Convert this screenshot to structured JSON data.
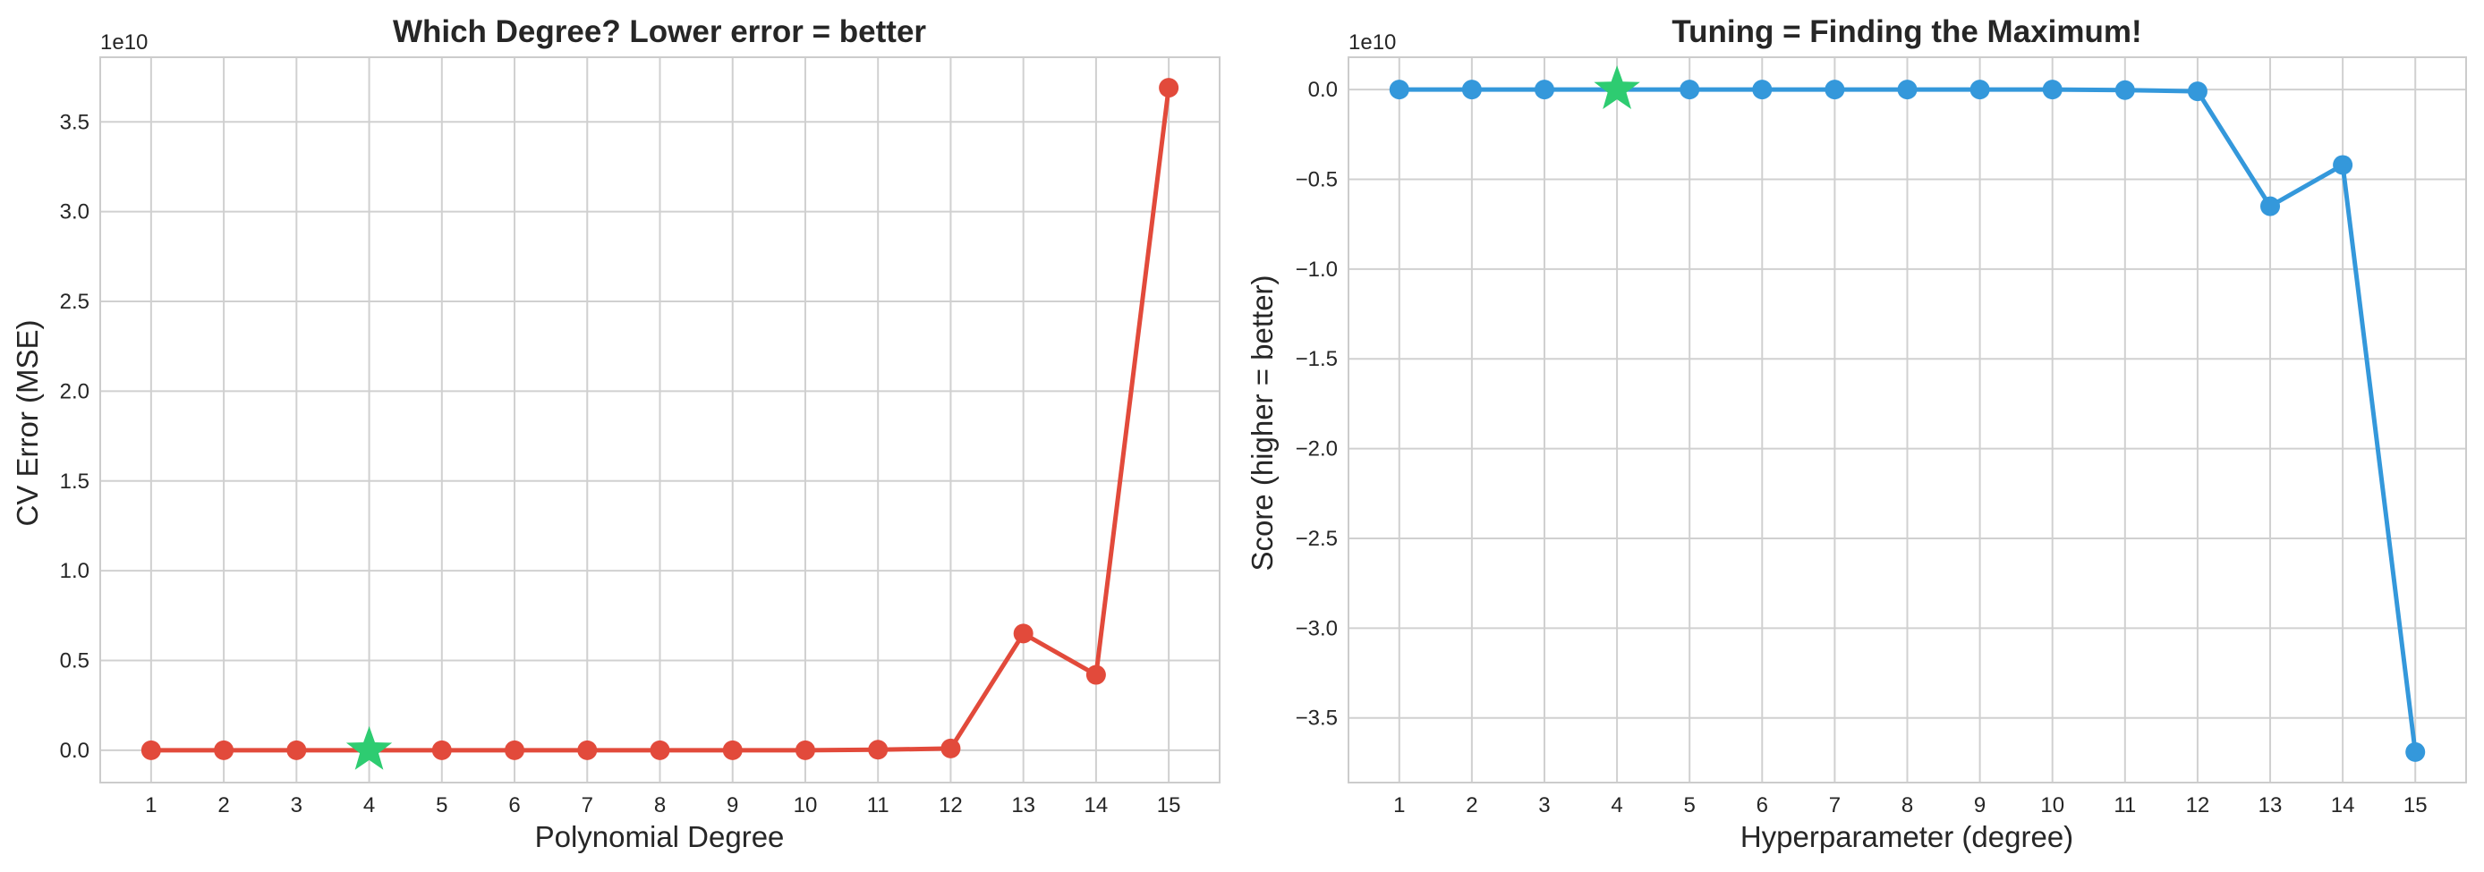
{
  "chart_data": [
    {
      "type": "line",
      "title": "Which Degree? Lower error = better",
      "xlabel": "Polynomial Degree",
      "ylabel": "CV Error (MSE)",
      "offset_text": "1e10",
      "x": [
        1,
        2,
        3,
        4,
        5,
        6,
        7,
        8,
        9,
        10,
        11,
        12,
        13,
        14,
        15
      ],
      "xlim": [
        0.3,
        15.7
      ],
      "ylim": [
        -0.18,
        3.86
      ],
      "yticks": [
        0.0,
        0.5,
        1.0,
        1.5,
        2.0,
        2.5,
        3.0,
        3.5
      ],
      "ytick_labels": [
        "0.0",
        "0.5",
        "1.0",
        "1.5",
        "2.0",
        "2.5",
        "3.0",
        "3.5"
      ],
      "series": [
        {
          "values": [
            0.0,
            0.0,
            0.0,
            0.0,
            0.0,
            0.0,
            0.0,
            0.0,
            0.0,
            0.0,
            0.003,
            0.01,
            0.65,
            0.42,
            3.69
          ],
          "color": "#e24a3b",
          "marker": "circle"
        }
      ],
      "highlight": {
        "x": 4,
        "y": 0.0,
        "marker": "star",
        "color": "#2ecc71"
      },
      "grid": true
    },
    {
      "type": "line",
      "title": "Tuning = Finding the Maximum!",
      "xlabel": "Hyperparameter (degree)",
      "ylabel": "Score (higher = better)",
      "offset_text": "1e10",
      "x": [
        1,
        2,
        3,
        4,
        5,
        6,
        7,
        8,
        9,
        10,
        11,
        12,
        13,
        14,
        15
      ],
      "xlim": [
        0.3,
        15.7
      ],
      "ylim": [
        -3.86,
        0.18
      ],
      "yticks": [
        0.0,
        -0.5,
        -1.0,
        -1.5,
        -2.0,
        -2.5,
        -3.0,
        -3.5
      ],
      "ytick_labels": [
        "0.0",
        "−0.5",
        "−1.0",
        "−1.5",
        "−2.0",
        "−2.5",
        "−3.0",
        "−3.5"
      ],
      "series": [
        {
          "values": [
            0.0,
            0.0,
            0.0,
            0.0,
            0.0,
            0.0,
            0.0,
            0.0,
            0.0,
            0.0,
            -0.003,
            -0.01,
            -0.65,
            -0.42,
            -3.69
          ],
          "color": "#3498db",
          "marker": "circle"
        }
      ],
      "highlight": {
        "x": 4,
        "y": 0.0,
        "marker": "star",
        "color": "#2ecc71"
      },
      "grid": true
    }
  ]
}
